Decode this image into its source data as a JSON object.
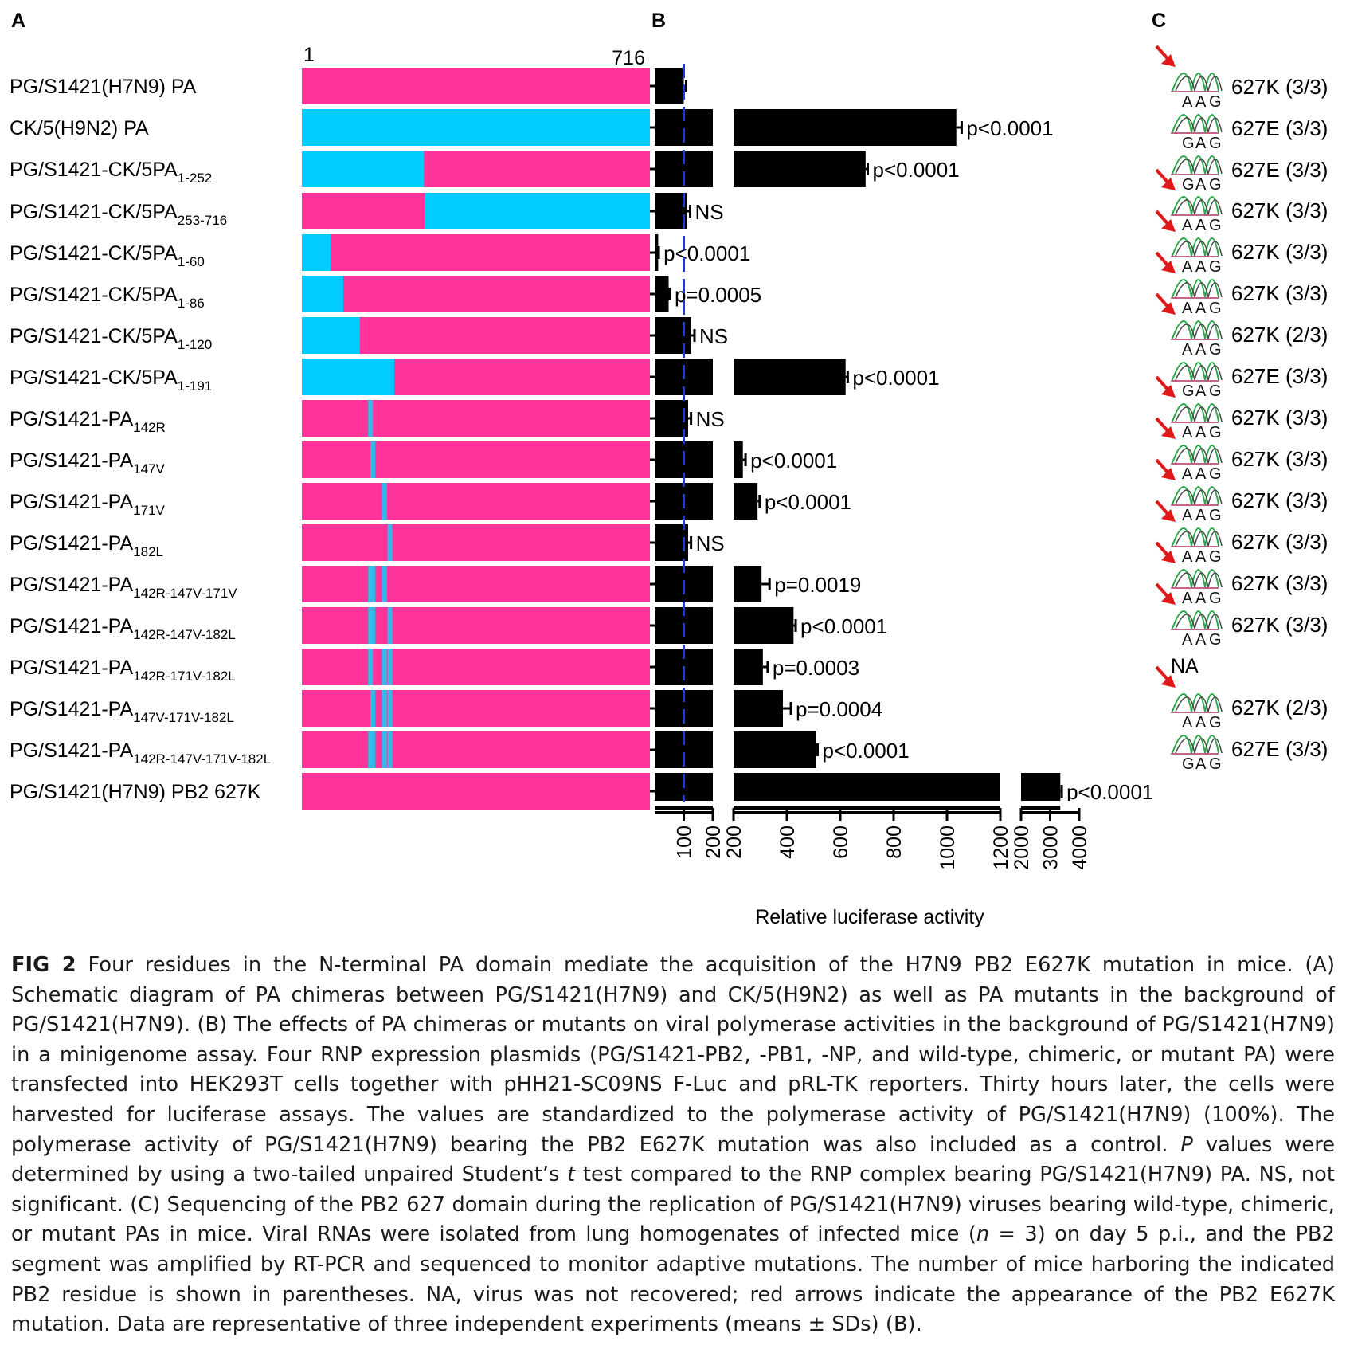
{
  "panels": {
    "a": "A",
    "b": "B",
    "c": "C"
  },
  "panel_a": {
    "scale_start": "1",
    "scale_end": "716",
    "protein_length": 716,
    "colors": {
      "h7n9": "#ff3399",
      "h9n2": "#00ccff",
      "point_mutation": "#33b8e8"
    },
    "rows": [
      {
        "label": "PG/S1421(H7N9) PA",
        "sub": "",
        "segments": [],
        "mutations": []
      },
      {
        "label": "CK/5(H9N2) PA",
        "sub": "",
        "segments": [
          [
            1,
            716
          ]
        ],
        "mutations": []
      },
      {
        "label": "PG/S1421-CK/5PA",
        "sub": "1-252",
        "segments": [
          [
            1,
            252
          ]
        ],
        "mutations": []
      },
      {
        "label": "PG/S1421-CK/5PA",
        "sub": "253-716",
        "segments": [
          [
            253,
            716
          ]
        ],
        "mutations": []
      },
      {
        "label": "PG/S1421-CK/5PA",
        "sub": "1-60",
        "segments": [
          [
            1,
            60
          ]
        ],
        "mutations": []
      },
      {
        "label": "PG/S1421-CK/5PA",
        "sub": "1-86",
        "segments": [
          [
            1,
            86
          ]
        ],
        "mutations": []
      },
      {
        "label": "PG/S1421-CK/5PA",
        "sub": "1-120",
        "segments": [
          [
            1,
            120
          ]
        ],
        "mutations": []
      },
      {
        "label": "PG/S1421-CK/5PA",
        "sub": "1-191",
        "segments": [
          [
            1,
            191
          ]
        ],
        "mutations": []
      },
      {
        "label": "PG/S1421-PA",
        "sub": "142R",
        "segments": [],
        "mutations": [
          142
        ]
      },
      {
        "label": "PG/S1421-PA",
        "sub": "147V",
        "segments": [],
        "mutations": [
          147
        ]
      },
      {
        "label": "PG/S1421-PA",
        "sub": "171V",
        "segments": [],
        "mutations": [
          171
        ]
      },
      {
        "label": "PG/S1421-PA",
        "sub": "182L",
        "segments": [],
        "mutations": [
          182
        ]
      },
      {
        "label": "PG/S1421-PA",
        "sub": "142R-147V-171V",
        "segments": [],
        "mutations": [
          142,
          147,
          171
        ]
      },
      {
        "label": "PG/S1421-PA",
        "sub": "142R-147V-182L",
        "segments": [],
        "mutations": [
          142,
          147,
          182
        ]
      },
      {
        "label": "PG/S1421-PA",
        "sub": "142R-171V-182L",
        "segments": [],
        "mutations": [
          142,
          171,
          182
        ]
      },
      {
        "label": "PG/S1421-PA",
        "sub": "147V-171V-182L",
        "segments": [],
        "mutations": [
          147,
          171,
          182
        ]
      },
      {
        "label": "PG/S1421-PA",
        "sub": "142R-147V-171V-182L",
        "segments": [],
        "mutations": [
          142,
          147,
          171,
          182
        ]
      },
      {
        "label": "PG/S1421(H7N9) PB2 627K",
        "sub": "",
        "segments": [],
        "mutations": []
      }
    ]
  },
  "chart_data": {
    "type": "bar",
    "orientation": "horizontal",
    "xlabel": "Relative luciferase activity",
    "reference_line": 100,
    "axis_breaks": [
      {
        "range": [
          0,
          200
        ],
        "ticks": [
          100,
          200
        ]
      },
      {
        "range": [
          200,
          1200
        ],
        "ticks": [
          200,
          400,
          600,
          800,
          1000,
          1200
        ]
      },
      {
        "range": [
          2000,
          4000
        ],
        "ticks": [
          2000,
          3000,
          4000
        ]
      }
    ],
    "categories": [
      "PG/S1421(H7N9) PA",
      "CK/5(H9N2) PA",
      "PG/S1421-CK/5PA1-252",
      "PG/S1421-CK/5PA253-716",
      "PG/S1421-CK/5PA1-60",
      "PG/S1421-CK/5PA1-86",
      "PG/S1421-CK/5PA1-120",
      "PG/S1421-CK/5PA1-191",
      "PG/S1421-PA142R",
      "PG/S1421-PA147V",
      "PG/S1421-PA171V",
      "PG/S1421-PA182L",
      "PG/S1421-PA142R-147V-171V",
      "PG/S1421-PA142R-147V-182L",
      "PG/S1421-PA142R-171V-182L",
      "PG/S1421-PA147V-171V-182L",
      "PG/S1421-PA142R-147V-171V-182L",
      "PG/S1421(H7N9) PB2 627K"
    ],
    "values": [
      100,
      1035,
      695,
      110,
      12,
      48,
      125,
      620,
      115,
      235,
      290,
      115,
      305,
      425,
      310,
      385,
      510,
      3350
    ],
    "errors": [
      8,
      20,
      8,
      12,
      2,
      4,
      12,
      8,
      10,
      10,
      8,
      10,
      30,
      8,
      18,
      30,
      5,
      50
    ],
    "annotations": [
      "",
      "p<0.0001",
      "p<0.0001",
      "NS",
      "p<0.0001",
      "p=0.0005",
      "NS",
      "p<0.0001",
      "NS",
      "p<0.0001",
      "p<0.0001",
      "NS",
      "p=0.0019",
      "p<0.0001",
      "p=0.0003",
      "p=0.0004",
      "p<0.0001",
      "p<0.0001"
    ]
  },
  "panel_c": {
    "rows": [
      {
        "codon": "AAG",
        "result": "627K (3/3)",
        "arrow": true
      },
      {
        "codon": "GAG",
        "result": "627E (3/3)",
        "arrow": false
      },
      {
        "codon": "GAG",
        "result": "627E (3/3)",
        "arrow": false
      },
      {
        "codon": "AAG",
        "result": "627K (3/3)",
        "arrow": true
      },
      {
        "codon": "AAG",
        "result": "627K (3/3)",
        "arrow": true
      },
      {
        "codon": "AAG",
        "result": "627K (3/3)",
        "arrow": true
      },
      {
        "codon": "AAG",
        "result": "627K (2/3)",
        "arrow": true
      },
      {
        "codon": "GAG",
        "result": "627E (3/3)",
        "arrow": false
      },
      {
        "codon": "AAG",
        "result": "627K (3/3)",
        "arrow": true
      },
      {
        "codon": "AAG",
        "result": "627K (3/3)",
        "arrow": true
      },
      {
        "codon": "AAG",
        "result": "627K (3/3)",
        "arrow": true
      },
      {
        "codon": "AAG",
        "result": "627K (3/3)",
        "arrow": true
      },
      {
        "codon": "AAG",
        "result": "627K (3/3)",
        "arrow": true
      },
      {
        "codon": "AAG",
        "result": "627K (3/3)",
        "arrow": true
      },
      {
        "codon": "",
        "result": "NA",
        "arrow": false
      },
      {
        "codon": "AAG",
        "result": "627K (2/3)",
        "arrow": true
      },
      {
        "codon": "GAG",
        "result": "627E (3/3)",
        "arrow": false
      }
    ]
  },
  "caption": {
    "label": "FIG 2",
    "p1": "  Four residues in the N-terminal PA domain mediate the acquisition of the H7N9 PB2 E627K mutation in mice. (A) Schematic diagram of PA chimeras between PG/S1421(H7N9) and CK/5(H9N2) as well as PA mutants in the background of PG/S1421(H7N9). (B) The effects of PA chimeras or mutants on viral polymerase activities in the background of PG/S1421(H7N9) in a minigenome assay. Four RNP expression plasmids (PG/S1421-PB2, -PB1, -NP, and wild-type, chimeric, or mutant PA) were transfected into HEK293T cells together with pHH21-SC09NS F-Luc and pRL-TK reporters. Thirty hours later, the cells were harvested for luciferase assays. The values are standardized to the polymerase activity of PG/S1421(H7N9) (100%). The polymerase activity of PG/S1421(H7N9) bearing the PB2 E627K mutation was also included as a control. ",
    "p_italic": "P",
    "p2": " values were determined by using a two-tailed unpaired Student’s ",
    "t_italic": "t",
    "p3": " test compared to the RNP complex bearing PG/S1421(H7N9) PA. NS, not significant. (C) Sequencing of the PB2 627 domain during the replication of PG/S1421(H7N9) viruses bearing wild-type, chimeric, or mutant PAs in mice. Viral RNAs were isolated from lung homogenates of infected mice (",
    "n_italic": "n",
    "p4": " = 3) on day 5 p.i., and the PB2 segment was amplified by RT-PCR and sequenced to monitor adaptive mutations. The number of mice harboring the indicated PB2 residue is shown in parentheses. NA, virus was not recovered; red arrows indicate the appearance of the PB2 E627K mutation. Data are representative of three independent experiments (means ± SDs) (B)."
  }
}
